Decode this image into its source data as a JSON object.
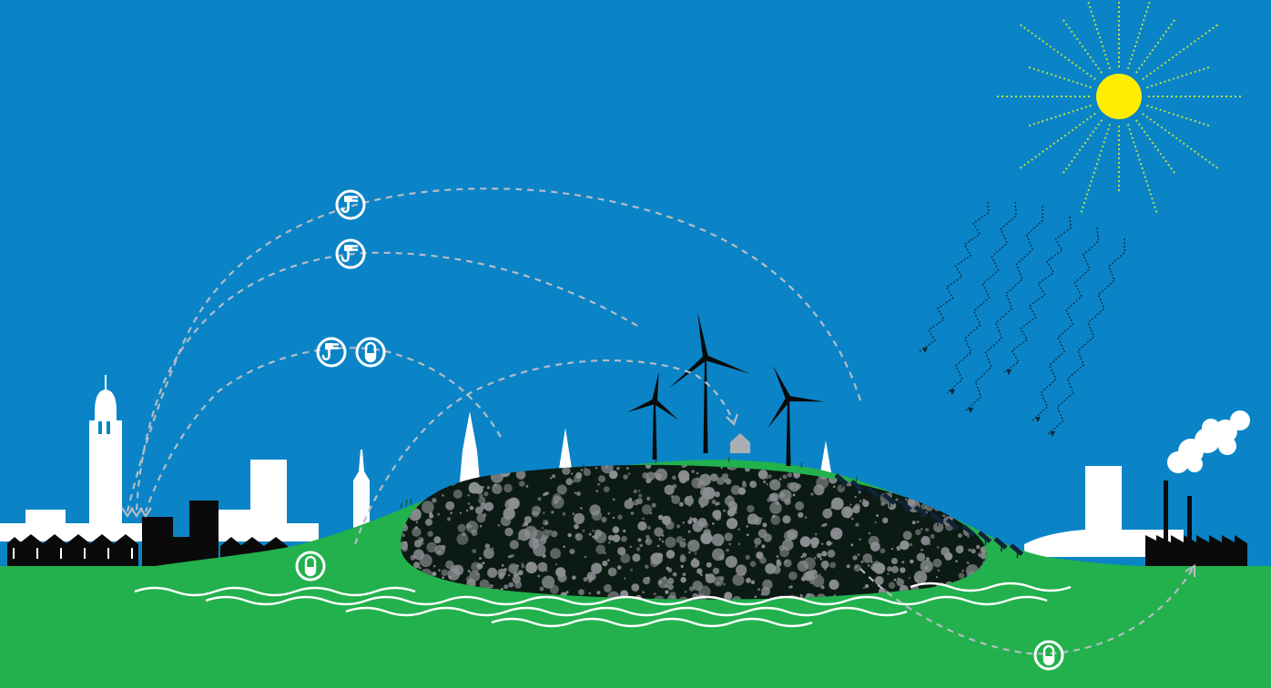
{
  "scene": {
    "sky_color": "#0a84c6",
    "grass_color": "#22b14c",
    "sun_color": "#ffee00",
    "ray_color": "#b8e04a",
    "waste_color": "#0c1a14",
    "stone_color": "#8d8f93",
    "flow_color": "#b4bcc6",
    "icons": [
      "plug-icon",
      "plug-icon",
      "plug-icon",
      "heat-capsule-icon",
      "heat-capsule-icon",
      "heat-capsule-icon"
    ]
  }
}
